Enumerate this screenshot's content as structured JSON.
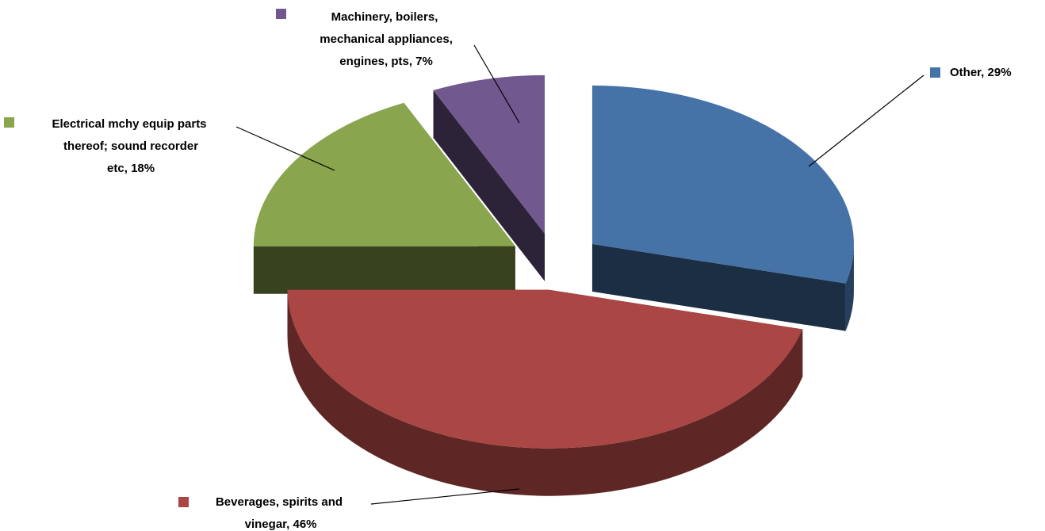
{
  "chart_data": {
    "type": "pie",
    "values": [
      29,
      46,
      18,
      7
    ],
    "value_labels": [
      "Other, 29%",
      "Beverages, spirits and vinegar, 46%",
      "Electrical mchy equip parts thereof; sound recorder etc, 18%",
      "Machinery, boilers, mechanical appliances, engines, pts, 7%"
    ],
    "colors": [
      "#4572a7",
      "#aa4643",
      "#89a54e",
      "#71588f"
    ]
  }
}
